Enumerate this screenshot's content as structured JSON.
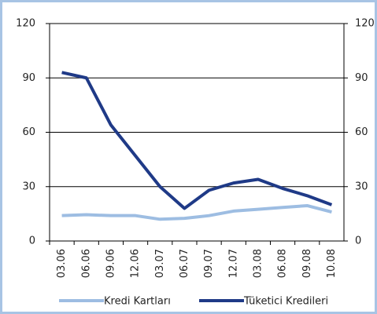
{
  "chart_data": {
    "type": "line",
    "categories": [
      "03.06",
      "06.06",
      "09.06",
      "12.06",
      "03.07",
      "06.07",
      "09.07",
      "12.07",
      "03.08",
      "06.08",
      "09.08",
      "10.08"
    ],
    "series": [
      {
        "name": "Kredi Kartları",
        "color": "#9dbde2",
        "values": [
          14,
          14.5,
          14,
          14,
          12,
          12.5,
          14,
          16.5,
          17.5,
          18.5,
          19.5,
          16
        ]
      },
      {
        "name": "Tüketici Kredileri",
        "color": "#1f3a87",
        "values": [
          93,
          90,
          64,
          47,
          30,
          18,
          28,
          32,
          34,
          29,
          25,
          20
        ]
      }
    ],
    "ylim": [
      0,
      120
    ],
    "yticks": [
      0,
      30,
      60,
      90,
      120
    ],
    "y2lim": [
      0,
      120
    ],
    "y2ticks": [
      0,
      30,
      60,
      90,
      120
    ],
    "grid": true
  }
}
